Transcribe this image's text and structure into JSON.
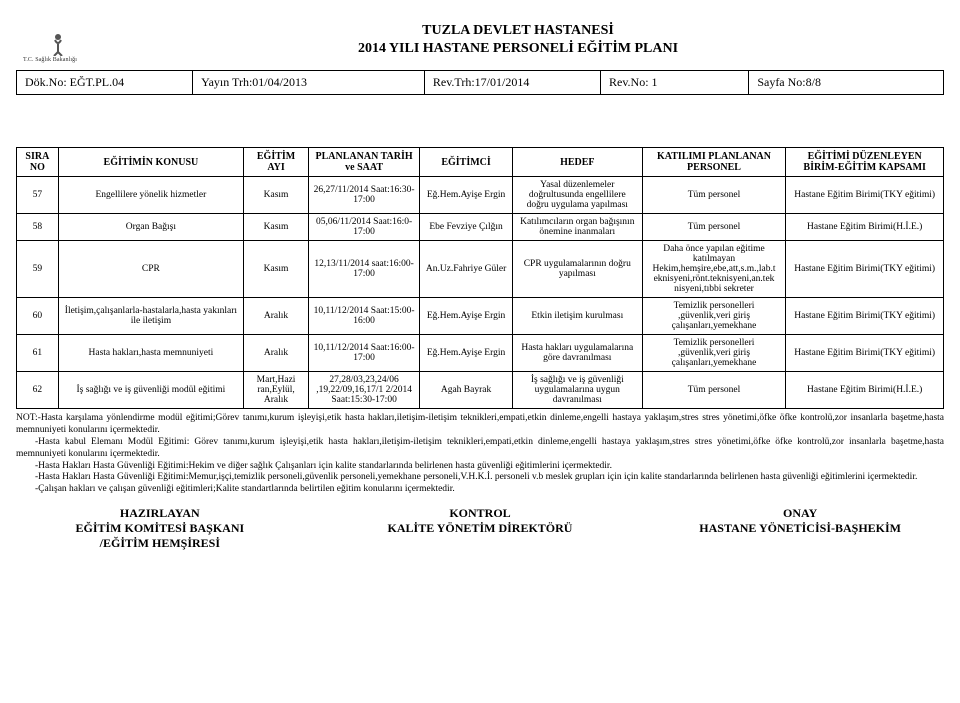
{
  "header": {
    "org": "TUZLA DEVLET HASTANESİ",
    "title": "2014 YILI HASTANE PERSONELİ EĞİTİM PLANI",
    "logo_text": "T.C. Sağlık Bakanlığı",
    "logo_crescent_color": "#cc0000",
    "logo_human_color": "#555555"
  },
  "meta": {
    "dok_label": "Dök.No: EĞT.PL.04",
    "yayin": "Yayın Trh:01/04/2013",
    "rev_trh": "Rev.Trh:17/01/2014",
    "rev_no": "Rev.No: 1",
    "sayfa": "Sayfa No:8/8"
  },
  "columns": [
    "SIRA NO",
    "EĞİTİMİN KONUSU",
    "EĞİTİM AYI",
    "PLANLANAN TARİH ve SAAT",
    "EĞİTİMCİ",
    "HEDEF",
    "KATILIMI PLANLANAN PERSONEL",
    "EĞİTİMİ DÜZENLEYEN BİRİM-EĞİTİM KAPSAMI"
  ],
  "rows": [
    {
      "no": "57",
      "konu": "Engellilere yönelik hizmetler",
      "ay": "Kasım",
      "tarih": "26,27/11/2014 Saat:16:30-17:00",
      "egitimci": "Eğ.Hem.Ayişe Ergin",
      "hedef": "Yasal düzenlemeler doğrultusunda engellilere doğru uygulama yapılması",
      "personel": "Tüm personel",
      "birim": "Hastane Eğitim Birimi(TKY eğitimi)"
    },
    {
      "no": "58",
      "konu": "Organ Bağışı",
      "ay": "Kasım",
      "tarih": "05,06/11/2014 Saat:16:0-17:00",
      "egitimci": "Ebe Fevziye Çılğın",
      "hedef": "Katılımcıların organ bağışının önemine inanmaları",
      "personel": "Tüm personel",
      "birim": "Hastane Eğitim Birimi(H.İ.E.)"
    },
    {
      "no": "59",
      "konu": "CPR",
      "ay": "Kasım",
      "tarih": "12,13/11/2014 saat:16:00-17:00",
      "egitimci": "An.Uz.Fahriye Güler",
      "hedef": "CPR uygulamalarının doğru yapılması",
      "personel": "Daha önce yapılan eğitime katılmayan Hekim,hemşire,ebe,att,s.m.,lab.t eknisyeni,rönt.teknisyeni,an.tek nisyeni,tıbbi sekreter",
      "birim": "Hastane Eğitim Birimi(TKY eğitimi)"
    },
    {
      "no": "60",
      "konu": "İletişim,çalışanlarla-hastalarla,hasta yakınları ile  iletişim",
      "ay": "Aralık",
      "tarih": "10,11/12/2014 Saat:15:00-16:00",
      "egitimci": "Eğ.Hem.Ayişe Ergin",
      "hedef": "Etkin iletişim kurulması",
      "personel": "Temizlik personelleri ,güvenlik,veri giriş çalışanları,yemekhane",
      "birim": "Hastane Eğitim Birimi(TKY eğitimi)"
    },
    {
      "no": "61",
      "konu": "Hasta hakları,hasta memnuniyeti",
      "ay": "Aralık",
      "tarih": "10,11/12/2014 Saat:16:00-17:00",
      "egitimci": "Eğ.Hem.Ayişe Ergin",
      "hedef": "Hasta hakları uygulamalarına göre davranılması",
      "personel": "Temizlik personelleri ,güvenlik,veri giriş çalışanları,yemekhane",
      "birim": "Hastane Eğitim Birimi(TKY eğitimi)"
    },
    {
      "no": "62",
      "konu": "İş sağlığı ve iş güvenliği modül eğitimi",
      "ay": "Mart,Hazi ran,Eylül, Aralık",
      "tarih": "27,28/03,23,24/06 ,19,22/09,16,17/1 2/2014 Saat:15:30-17:00",
      "egitimci": "Agah Bayrak",
      "hedef": "İş sağlığı ve iş güvenliği uygulamalarına uygun davranılması",
      "personel": "Tüm personel",
      "birim": "Hastane Eğitim Birimi(H.İ.E.)"
    }
  ],
  "notes": [
    "NOT:-Hasta karşılama yönlendirme modül eğitimi;Görev tanımı,kurum işleyişi,etik hasta hakları,iletişim-iletişim teknikleri,empati,etkin dinleme,engelli hastaya yaklaşım,stres stres yönetimi,öfke öfke kontrolü,zor insanlarla başetme,hasta memnuniyeti konularını içermektedir.",
    "-Hasta kabul Elemanı Modül Eğitimi: Görev tanımı,kurum işleyişi,etik hasta hakları,iletişim-iletişim teknikleri,empati,etkin dinleme,engelli hastaya yaklaşım,stres stres yönetimi,öfke öfke kontrolü,zor insanlarla başetme,hasta memnuniyeti konularını içermektedir.",
    "-Hasta Hakları Hasta Güvenliği Eğitimi:Hekim ve diğer sağlık Çalışanları için  kalite standarlarında belirlenen hasta güvenliği eğitimlerini içermektedir.",
    "-Hasta Hakları Hasta Güvenliği Eğitimi:Memur,işçi,temizlik personeli,güvenlik personeli,yemekhane personeli,V.H.K.İ. personeli v.b  meslek grupları için için  kalite standarlarında belirlenen hasta güvenliği eğitimlerini içermektedir.",
    "-Çalışan hakları ve çalışan güvenliği eğitimleri;Kalite standartlarında belirtilen eğitim konularını içermektedir."
  ],
  "sign": {
    "left1": "HAZIRLAYAN",
    "left2": "EĞİTİM KOMİTESİ BAŞKANI",
    "left3": "/EĞİTİM HEMŞİRESİ",
    "mid1": "KONTROL",
    "mid2": "KALİTE YÖNETİM DİREKTÖRÜ",
    "right1": "ONAY",
    "right2": "HASTANE YÖNETİCİSİ-BAŞHEKİM"
  }
}
